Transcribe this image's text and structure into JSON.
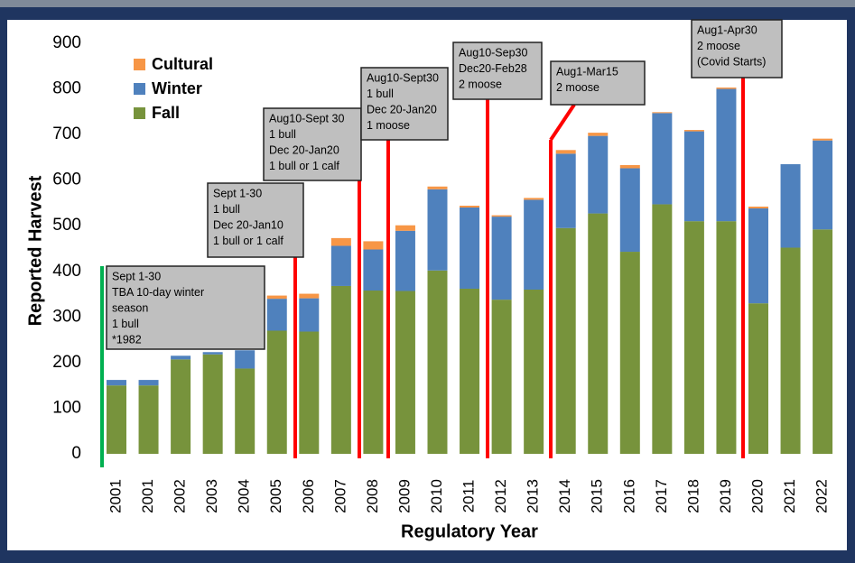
{
  "chart_data": {
    "type": "stacked_bar",
    "ylabel": "Reported Harvest",
    "xlabel": "Regulatory Year",
    "categories": [
      "2001",
      "2001",
      "2002",
      "2003",
      "2004",
      "2005",
      "2006",
      "2007",
      "2008",
      "2009",
      "2010",
      "2011",
      "2012",
      "2013",
      "2014",
      "2015",
      "2016",
      "2017",
      "2018",
      "2019",
      "2020",
      "2021",
      "2022"
    ],
    "series": [
      {
        "name": "Fall",
        "color": "#77933c",
        "values": [
          150,
          150,
          207,
          218,
          187,
          270,
          268,
          368,
          358,
          357,
          402,
          362,
          338,
          360,
          495,
          527,
          443,
          547,
          510,
          510,
          330,
          452,
          492
        ]
      },
      {
        "name": "Winter",
        "color": "#4f81bd",
        "values": [
          12,
          12,
          8,
          5,
          40,
          70,
          73,
          88,
          90,
          132,
          178,
          178,
          182,
          197,
          163,
          170,
          183,
          200,
          197,
          290,
          208,
          183,
          195
        ]
      },
      {
        "name": "Cultural",
        "color": "#f79646",
        "values": [
          0,
          0,
          0,
          0,
          0,
          7,
          10,
          17,
          18,
          12,
          6,
          4,
          3,
          4,
          8,
          7,
          7,
          2,
          3,
          3,
          4,
          0,
          4
        ]
      }
    ],
    "ylim": [
      0,
      900
    ],
    "yticks": [
      0,
      100,
      200,
      300,
      400,
      500,
      600,
      700,
      800,
      900
    ],
    "legend": "top-left",
    "annotations": [
      {
        "lines": [
          "Sept 1-30",
          "TBA 10-day winter",
          "season",
          "1 bull",
          "*1982"
        ]
      },
      {
        "lines": [
          "Sept 1-30",
          "1 bull",
          "Dec 20-Jan10",
          "1 bull or 1 calf"
        ]
      },
      {
        "lines": [
          "Aug10-Sept 30",
          "1 bull",
          "Dec 20-Jan20",
          "1 bull or 1 calf"
        ]
      },
      {
        "lines": [
          "Aug10-Sept30",
          "1 bull",
          "Dec 20-Jan20",
          "1 moose"
        ]
      },
      {
        "lines": [
          "Aug10-Sep30",
          "Dec20-Feb28",
          "2 moose"
        ]
      },
      {
        "lines": [
          "Aug1-Mar15",
          "2 moose"
        ]
      },
      {
        "lines": [
          "Aug1-Apr30",
          "2 moose",
          "(Covid Starts)"
        ]
      }
    ]
  }
}
